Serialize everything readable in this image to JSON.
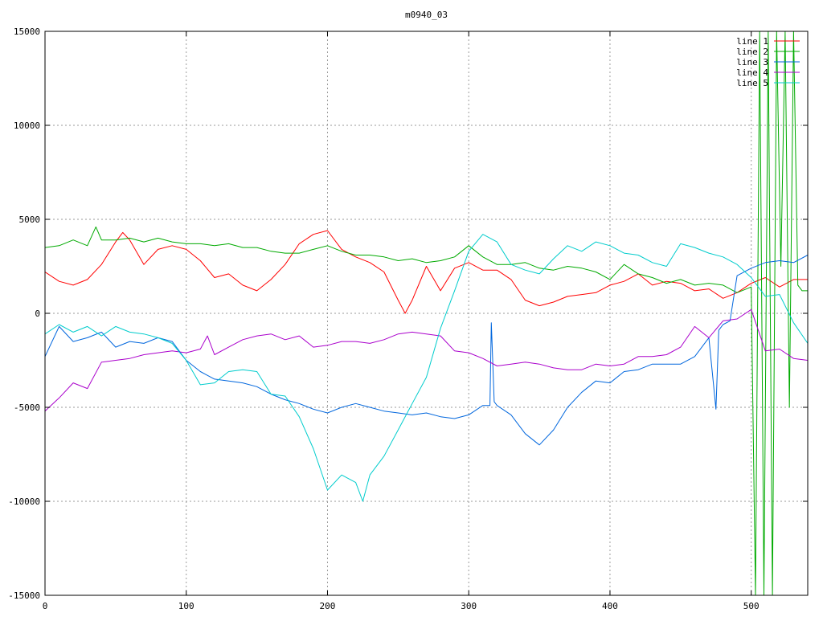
{
  "chart_data": {
    "type": "line",
    "title": "m0940_03",
    "xlabel": "",
    "ylabel": "",
    "xlim": [
      0,
      540
    ],
    "ylim": [
      -15000,
      15000
    ],
    "xticks": [
      0,
      100,
      200,
      300,
      400,
      500
    ],
    "yticks": [
      -15000,
      -10000,
      -5000,
      0,
      5000,
      10000,
      15000
    ],
    "grid": true,
    "legend_position": "top-right",
    "series": [
      {
        "name": "line 1",
        "color": "#ff0000",
        "x": [
          0,
          10,
          20,
          30,
          40,
          50,
          55,
          60,
          70,
          80,
          90,
          100,
          110,
          120,
          130,
          140,
          150,
          160,
          170,
          180,
          190,
          200,
          210,
          220,
          230,
          240,
          250,
          255,
          260,
          270,
          280,
          290,
          300,
          310,
          320,
          330,
          340,
          350,
          360,
          370,
          380,
          390,
          400,
          410,
          420,
          430,
          440,
          450,
          460,
          470,
          480,
          490,
          500,
          510,
          520,
          530,
          540
        ],
        "values": [
          2200,
          1700,
          1500,
          1800,
          2600,
          3800,
          4300,
          3900,
          2600,
          3400,
          3600,
          3400,
          2800,
          1900,
          2100,
          1500,
          1200,
          1800,
          2600,
          3700,
          4200,
          4400,
          3400,
          3000,
          2700,
          2200,
          700,
          0,
          700,
          2500,
          1200,
          2400,
          2700,
          2300,
          2300,
          1800,
          700,
          400,
          600,
          900,
          1000,
          1100,
          1500,
          1700,
          2100,
          1500,
          1700,
          1600,
          1200,
          1300,
          800,
          1100,
          1600,
          1900,
          1400,
          1800,
          1800
        ]
      },
      {
        "name": "line 2",
        "color": "#00aa00",
        "x": [
          0,
          10,
          20,
          30,
          36,
          40,
          50,
          60,
          70,
          80,
          90,
          100,
          110,
          120,
          130,
          140,
          150,
          160,
          170,
          180,
          190,
          200,
          210,
          220,
          230,
          240,
          250,
          260,
          270,
          280,
          290,
          300,
          310,
          320,
          330,
          340,
          350,
          360,
          370,
          380,
          390,
          400,
          410,
          420,
          430,
          440,
          450,
          460,
          470,
          480,
          490,
          500,
          503,
          506,
          509,
          512,
          515,
          518,
          521,
          524,
          527,
          530,
          533,
          536,
          540
        ],
        "values": [
          3500,
          3600,
          3900,
          3600,
          4600,
          3900,
          3900,
          4000,
          3800,
          4000,
          3800,
          3700,
          3700,
          3600,
          3700,
          3500,
          3500,
          3300,
          3200,
          3200,
          3400,
          3600,
          3300,
          3100,
          3100,
          3000,
          2800,
          2900,
          2700,
          2800,
          3000,
          3600,
          3000,
          2600,
          2600,
          2700,
          2400,
          2300,
          2500,
          2400,
          2200,
          1800,
          2600,
          2100,
          1900,
          1600,
          1800,
          1500,
          1600,
          1500,
          1100,
          1400,
          -15000,
          15000,
          -15000,
          15000,
          -15000,
          15000,
          2500,
          15000,
          -5000,
          15000,
          1500,
          1200,
          1200
        ]
      },
      {
        "name": "line 3",
        "color": "#0066dd",
        "x": [
          0,
          10,
          20,
          30,
          40,
          50,
          60,
          70,
          80,
          90,
          100,
          110,
          120,
          130,
          140,
          150,
          160,
          170,
          180,
          190,
          200,
          210,
          220,
          230,
          240,
          250,
          260,
          270,
          280,
          290,
          300,
          310,
          315,
          316,
          318,
          320,
          330,
          340,
          350,
          360,
          370,
          380,
          390,
          400,
          410,
          420,
          430,
          440,
          450,
          460,
          470,
          475,
          477,
          480,
          485,
          490,
          500,
          510,
          520,
          530,
          540
        ],
        "values": [
          -2300,
          -700,
          -1500,
          -1300,
          -1000,
          -1800,
          -1500,
          -1600,
          -1300,
          -1500,
          -2500,
          -3100,
          -3500,
          -3600,
          -3700,
          -3900,
          -4300,
          -4600,
          -4800,
          -5100,
          -5300,
          -5000,
          -4800,
          -5000,
          -5200,
          -5300,
          -5400,
          -5300,
          -5500,
          -5600,
          -5400,
          -4900,
          -4900,
          -500,
          -4700,
          -4900,
          -5400,
          -6400,
          -7000,
          -6200,
          -5000,
          -4200,
          -3600,
          -3700,
          -3100,
          -3000,
          -2700,
          -2700,
          -2700,
          -2300,
          -1300,
          -5100,
          -900,
          -600,
          -400,
          2000,
          2400,
          2700,
          2800,
          2700,
          3100
        ]
      },
      {
        "name": "line 4",
        "color": "#aa00cc",
        "x": [
          0,
          10,
          20,
          30,
          40,
          50,
          60,
          70,
          80,
          90,
          100,
          110,
          115,
          120,
          130,
          140,
          150,
          160,
          170,
          180,
          190,
          200,
          210,
          220,
          230,
          240,
          250,
          260,
          270,
          280,
          290,
          300,
          310,
          320,
          330,
          340,
          350,
          360,
          370,
          380,
          390,
          400,
          410,
          420,
          430,
          440,
          450,
          460,
          470,
          480,
          490,
          500,
          510,
          520,
          530,
          540
        ],
        "values": [
          -5200,
          -4500,
          -3700,
          -4000,
          -2600,
          -2500,
          -2400,
          -2200,
          -2100,
          -2000,
          -2100,
          -1900,
          -1200,
          -2200,
          -1800,
          -1400,
          -1200,
          -1100,
          -1400,
          -1200,
          -1800,
          -1700,
          -1500,
          -1500,
          -1600,
          -1400,
          -1100,
          -1000,
          -1100,
          -1200,
          -2000,
          -2100,
          -2400,
          -2800,
          -2700,
          -2600,
          -2700,
          -2900,
          -3000,
          -3000,
          -2700,
          -2800,
          -2700,
          -2300,
          -2300,
          -2200,
          -1800,
          -700,
          -1300,
          -400,
          -300,
          200,
          -2000,
          -1900,
          -2400,
          -2500
        ]
      },
      {
        "name": "line 5",
        "color": "#00cccc",
        "x": [
          0,
          10,
          20,
          30,
          40,
          50,
          60,
          70,
          80,
          90,
          100,
          110,
          120,
          130,
          140,
          150,
          160,
          170,
          180,
          190,
          200,
          210,
          220,
          225,
          230,
          240,
          250,
          260,
          270,
          280,
          290,
          300,
          310,
          320,
          330,
          340,
          350,
          360,
          370,
          380,
          390,
          400,
          410,
          420,
          430,
          440,
          450,
          460,
          470,
          480,
          490,
          500,
          510,
          520,
          530,
          540
        ],
        "values": [
          -1100,
          -600,
          -1000,
          -700,
          -1200,
          -700,
          -1000,
          -1100,
          -1300,
          -1600,
          -2500,
          -3800,
          -3700,
          -3100,
          -3000,
          -3100,
          -4300,
          -4400,
          -5500,
          -7200,
          -9400,
          -8600,
          -9000,
          -10000,
          -8600,
          -7600,
          -6200,
          -4800,
          -3400,
          -800,
          1200,
          3300,
          4200,
          3800,
          2600,
          2300,
          2100,
          2900,
          3600,
          3300,
          3800,
          3600,
          3200,
          3100,
          2700,
          2500,
          3700,
          3500,
          3200,
          3000,
          2600,
          1900,
          900,
          1000,
          -500,
          -1600
        ]
      }
    ]
  }
}
